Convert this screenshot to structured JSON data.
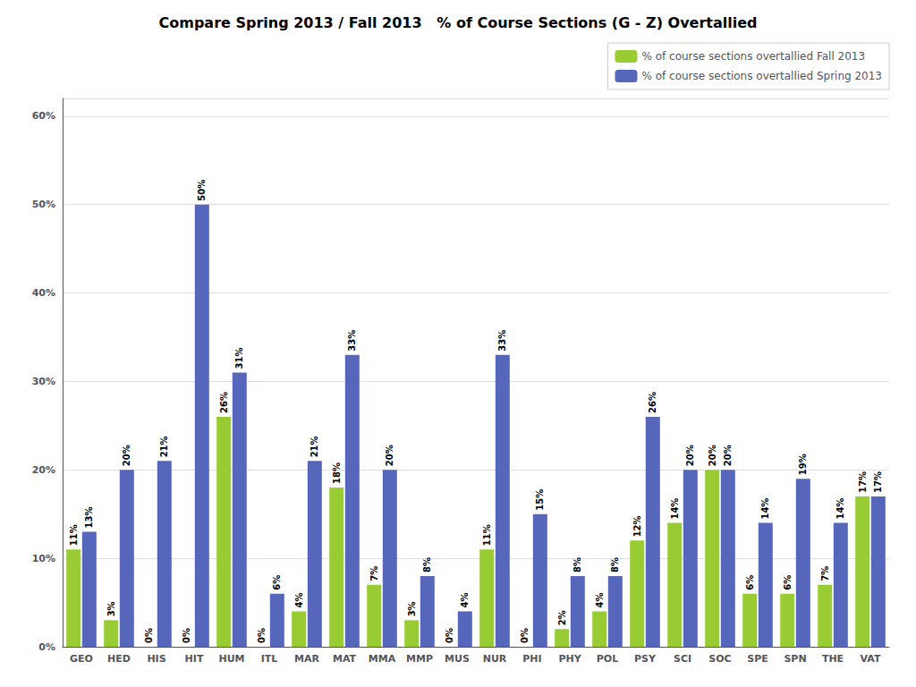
{
  "chart_data": {
    "type": "bar",
    "title": "Compare Spring 2013 / Fall 2013   % of Course Sections (G - Z) Overtallied",
    "categories": [
      "GEO",
      "HED",
      "HIS",
      "HIT",
      "HUM",
      "ITL",
      "MAR",
      "MAT",
      "MMA",
      "MMP",
      "MUS",
      "NUR",
      "PHI",
      "PHY",
      "POL",
      "PSY",
      "SCI",
      "SOC",
      "SPE",
      "SPN",
      "THE",
      "VAT"
    ],
    "series": [
      {
        "name": "% of course sections overtallied Fall 2013",
        "color": "#99cc33",
        "values": [
          11,
          3,
          0,
          0,
          26,
          0,
          4,
          18,
          7,
          3,
          0,
          11,
          0,
          2,
          4,
          12,
          14,
          20,
          6,
          6,
          7,
          17
        ],
        "value_labels": [
          "11%",
          "3%",
          "0%",
          "0%",
          "26%",
          "0%",
          "4%",
          "18%",
          "7%",
          "3%",
          "0%",
          "11%",
          "0%",
          "2%",
          "4%",
          "12%",
          "14%",
          "20%",
          "6%",
          "6%",
          "7%",
          "17%"
        ]
      },
      {
        "name": "% of course sections overtallied Spring 2013",
        "color": "#5566bb",
        "values": [
          13,
          20,
          21,
          50,
          31,
          6,
          21,
          33,
          20,
          8,
          4,
          33,
          15,
          8,
          8,
          26,
          20,
          20,
          14,
          19,
          14,
          17
        ],
        "value_labels": [
          "13%",
          "20%",
          "21%",
          "50%",
          "31%",
          "6%",
          "21%",
          "33%",
          "20%",
          "8%",
          "4%",
          "33%",
          "15%",
          "8%",
          "8%",
          "26%",
          "20%",
          "20%",
          "14%",
          "19%",
          "14%",
          "17%"
        ]
      }
    ],
    "ylim": [
      0,
      62
    ],
    "yticks": [
      {
        "value": 0,
        "label": "0%"
      },
      {
        "value": 10,
        "label": "10%"
      },
      {
        "value": 20,
        "label": "20%"
      },
      {
        "value": 30,
        "label": "30%"
      },
      {
        "value": 40,
        "label": "40%"
      },
      {
        "value": 50,
        "label": "50%"
      },
      {
        "value": 60,
        "label": "60%"
      }
    ],
    "grid": true,
    "legend": "upper right",
    "data_labels": true
  }
}
